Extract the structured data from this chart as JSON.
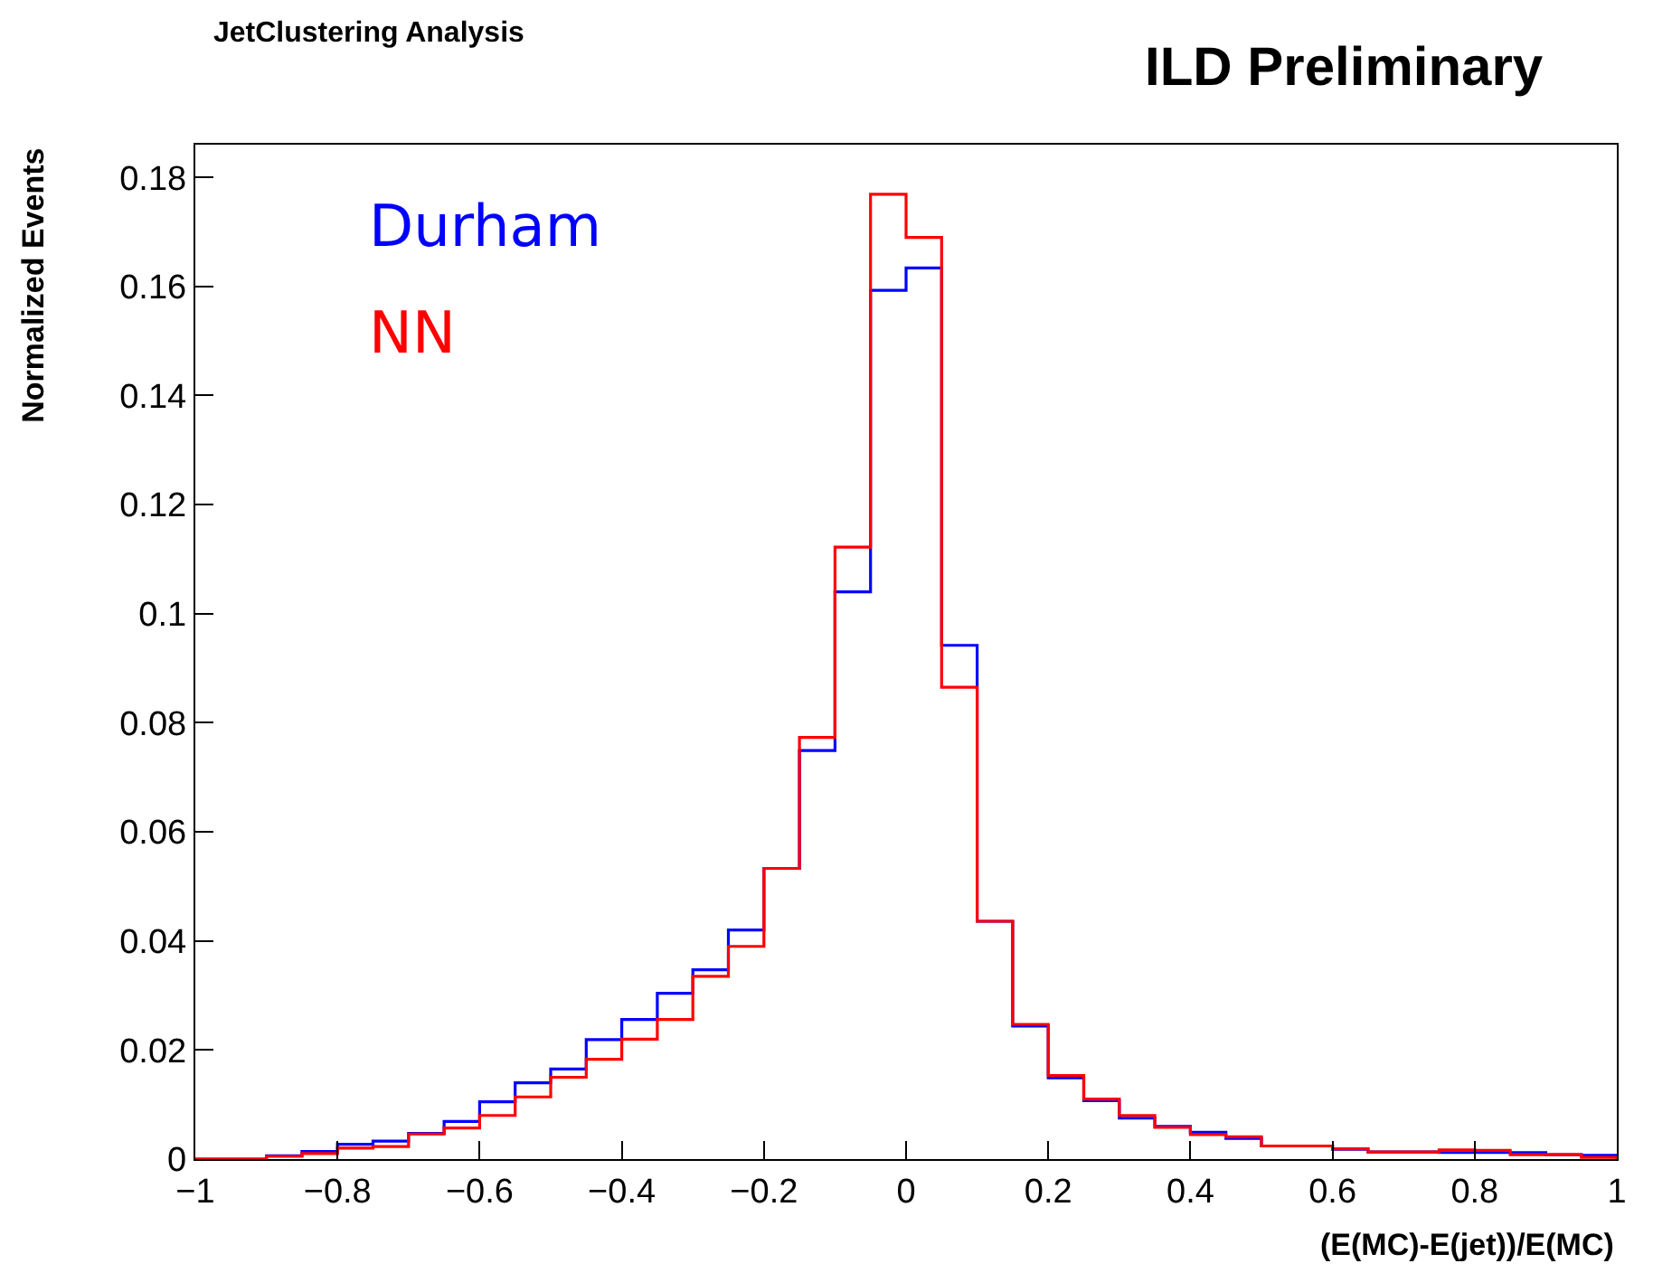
{
  "chart_data": {
    "type": "histogram",
    "title": "ILD Preliminary",
    "subtitle": "JetClustering Analysis",
    "xlabel": "(E(MC)-E(jet))/E(MC)",
    "ylabel": "Normalized Events",
    "bins": [
      -1,
      -0.95,
      -0.9,
      -0.85,
      -0.8,
      -0.75,
      -0.7,
      -0.65,
      -0.6,
      -0.55,
      -0.5,
      -0.45,
      -0.4,
      -0.35,
      -0.3,
      -0.25,
      -0.2,
      -0.15,
      -0.1,
      -0.05,
      0,
      0.05,
      0.1,
      0.15,
      0.2,
      0.25,
      0.3,
      0.35,
      0.4,
      0.45,
      0.5,
      0.55,
      0.6,
      0.65,
      0.7,
      0.75,
      0.8,
      0.85,
      0.9,
      0.95,
      1
    ],
    "series": [
      {
        "name": "Durham",
        "color": "#0000ff",
        "values": [
          0,
          0,
          0.0006,
          0.0014,
          0.0027,
          0.0033,
          0.0047,
          0.0069,
          0.0105,
          0.014,
          0.0165,
          0.0219,
          0.0256,
          0.0304,
          0.0347,
          0.042,
          0.0533,
          0.0749,
          0.104,
          0.1593,
          0.1634,
          0.0942,
          0.0436,
          0.0244,
          0.0149,
          0.0107,
          0.0075,
          0.006,
          0.0049,
          0.0038,
          0.0024,
          0.0024,
          0.0018,
          0.0013,
          0.0013,
          0.0012,
          0.0012,
          0.0012,
          0.0008,
          0.0007
        ]
      },
      {
        "name": "NN",
        "color": "#ff0000",
        "values": [
          0,
          0,
          0.0005,
          0.001,
          0.002,
          0.0023,
          0.0046,
          0.0057,
          0.008,
          0.0114,
          0.015,
          0.0183,
          0.022,
          0.0256,
          0.0335,
          0.039,
          0.0533,
          0.0773,
          0.1122,
          0.1769,
          0.169,
          0.0865,
          0.0436,
          0.0247,
          0.0153,
          0.011,
          0.008,
          0.0058,
          0.0045,
          0.0041,
          0.0024,
          0.0024,
          0.0019,
          0.0013,
          0.0013,
          0.0017,
          0.0016,
          0.0008,
          0.0008,
          0.0003
        ]
      }
    ],
    "xlim": [
      -1,
      1
    ],
    "xticks": [
      {
        "value": -1,
        "label": "−1"
      },
      {
        "value": -0.8,
        "label": "−0.8"
      },
      {
        "value": -0.6,
        "label": "−0.6"
      },
      {
        "value": -0.4,
        "label": "−0.4"
      },
      {
        "value": -0.2,
        "label": "−0.2"
      },
      0,
      0.2,
      0.4,
      0.6,
      0.8,
      1
    ],
    "ylim": [
      0,
      0.186
    ],
    "yticks": [
      0,
      0.02,
      0.04,
      0.06,
      0.08,
      0.1,
      0.12,
      0.14,
      0.16,
      0.18
    ],
    "legend": "top left"
  }
}
